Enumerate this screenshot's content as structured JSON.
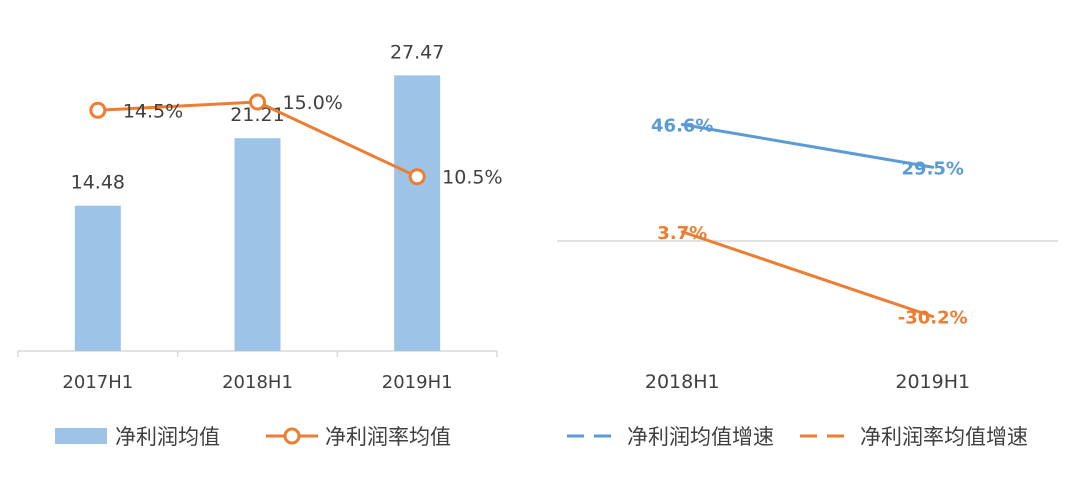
{
  "colors": {
    "bar": "#9DC3E6",
    "orange": "#ED7D31",
    "blue": "#5B9BD5",
    "axis": "#d9d9d9",
    "text": "#404040"
  },
  "chart_data": [
    {
      "type": "bar",
      "categories": [
        "2017H1",
        "2018H1",
        "2019H1"
      ],
      "ylim": [
        0,
        30
      ],
      "y2lim": [
        0,
        20
      ],
      "series": [
        {
          "name": "净利润均值",
          "type": "bar",
          "values": [
            14.48,
            21.21,
            27.47
          ],
          "labels": [
            "14.48",
            "21.21",
            "27.47"
          ]
        },
        {
          "name": "净利润率均值",
          "type": "line",
          "axis": "secondary",
          "marker": "circle",
          "values": [
            14.5,
            15.0,
            10.5
          ],
          "labels": [
            "14.5%",
            "15.0%",
            "10.5%"
          ]
        }
      ],
      "legend": "bottom",
      "grid": false
    },
    {
      "type": "line",
      "categories": [
        "2018H1",
        "2019H1"
      ],
      "ylim": [
        -40,
        55
      ],
      "series": [
        {
          "name": "净利润均值增速",
          "values": [
            46.6,
            29.5
          ],
          "labels": [
            "46.6%",
            "29.5%"
          ],
          "legend_style": "dashed"
        },
        {
          "name": "净利润率均值增速",
          "values": [
            3.7,
            -30.2
          ],
          "labels": [
            "3.7%",
            "-30.2%"
          ],
          "legend_style": "dashed"
        }
      ],
      "legend": "bottom",
      "grid": false
    }
  ]
}
